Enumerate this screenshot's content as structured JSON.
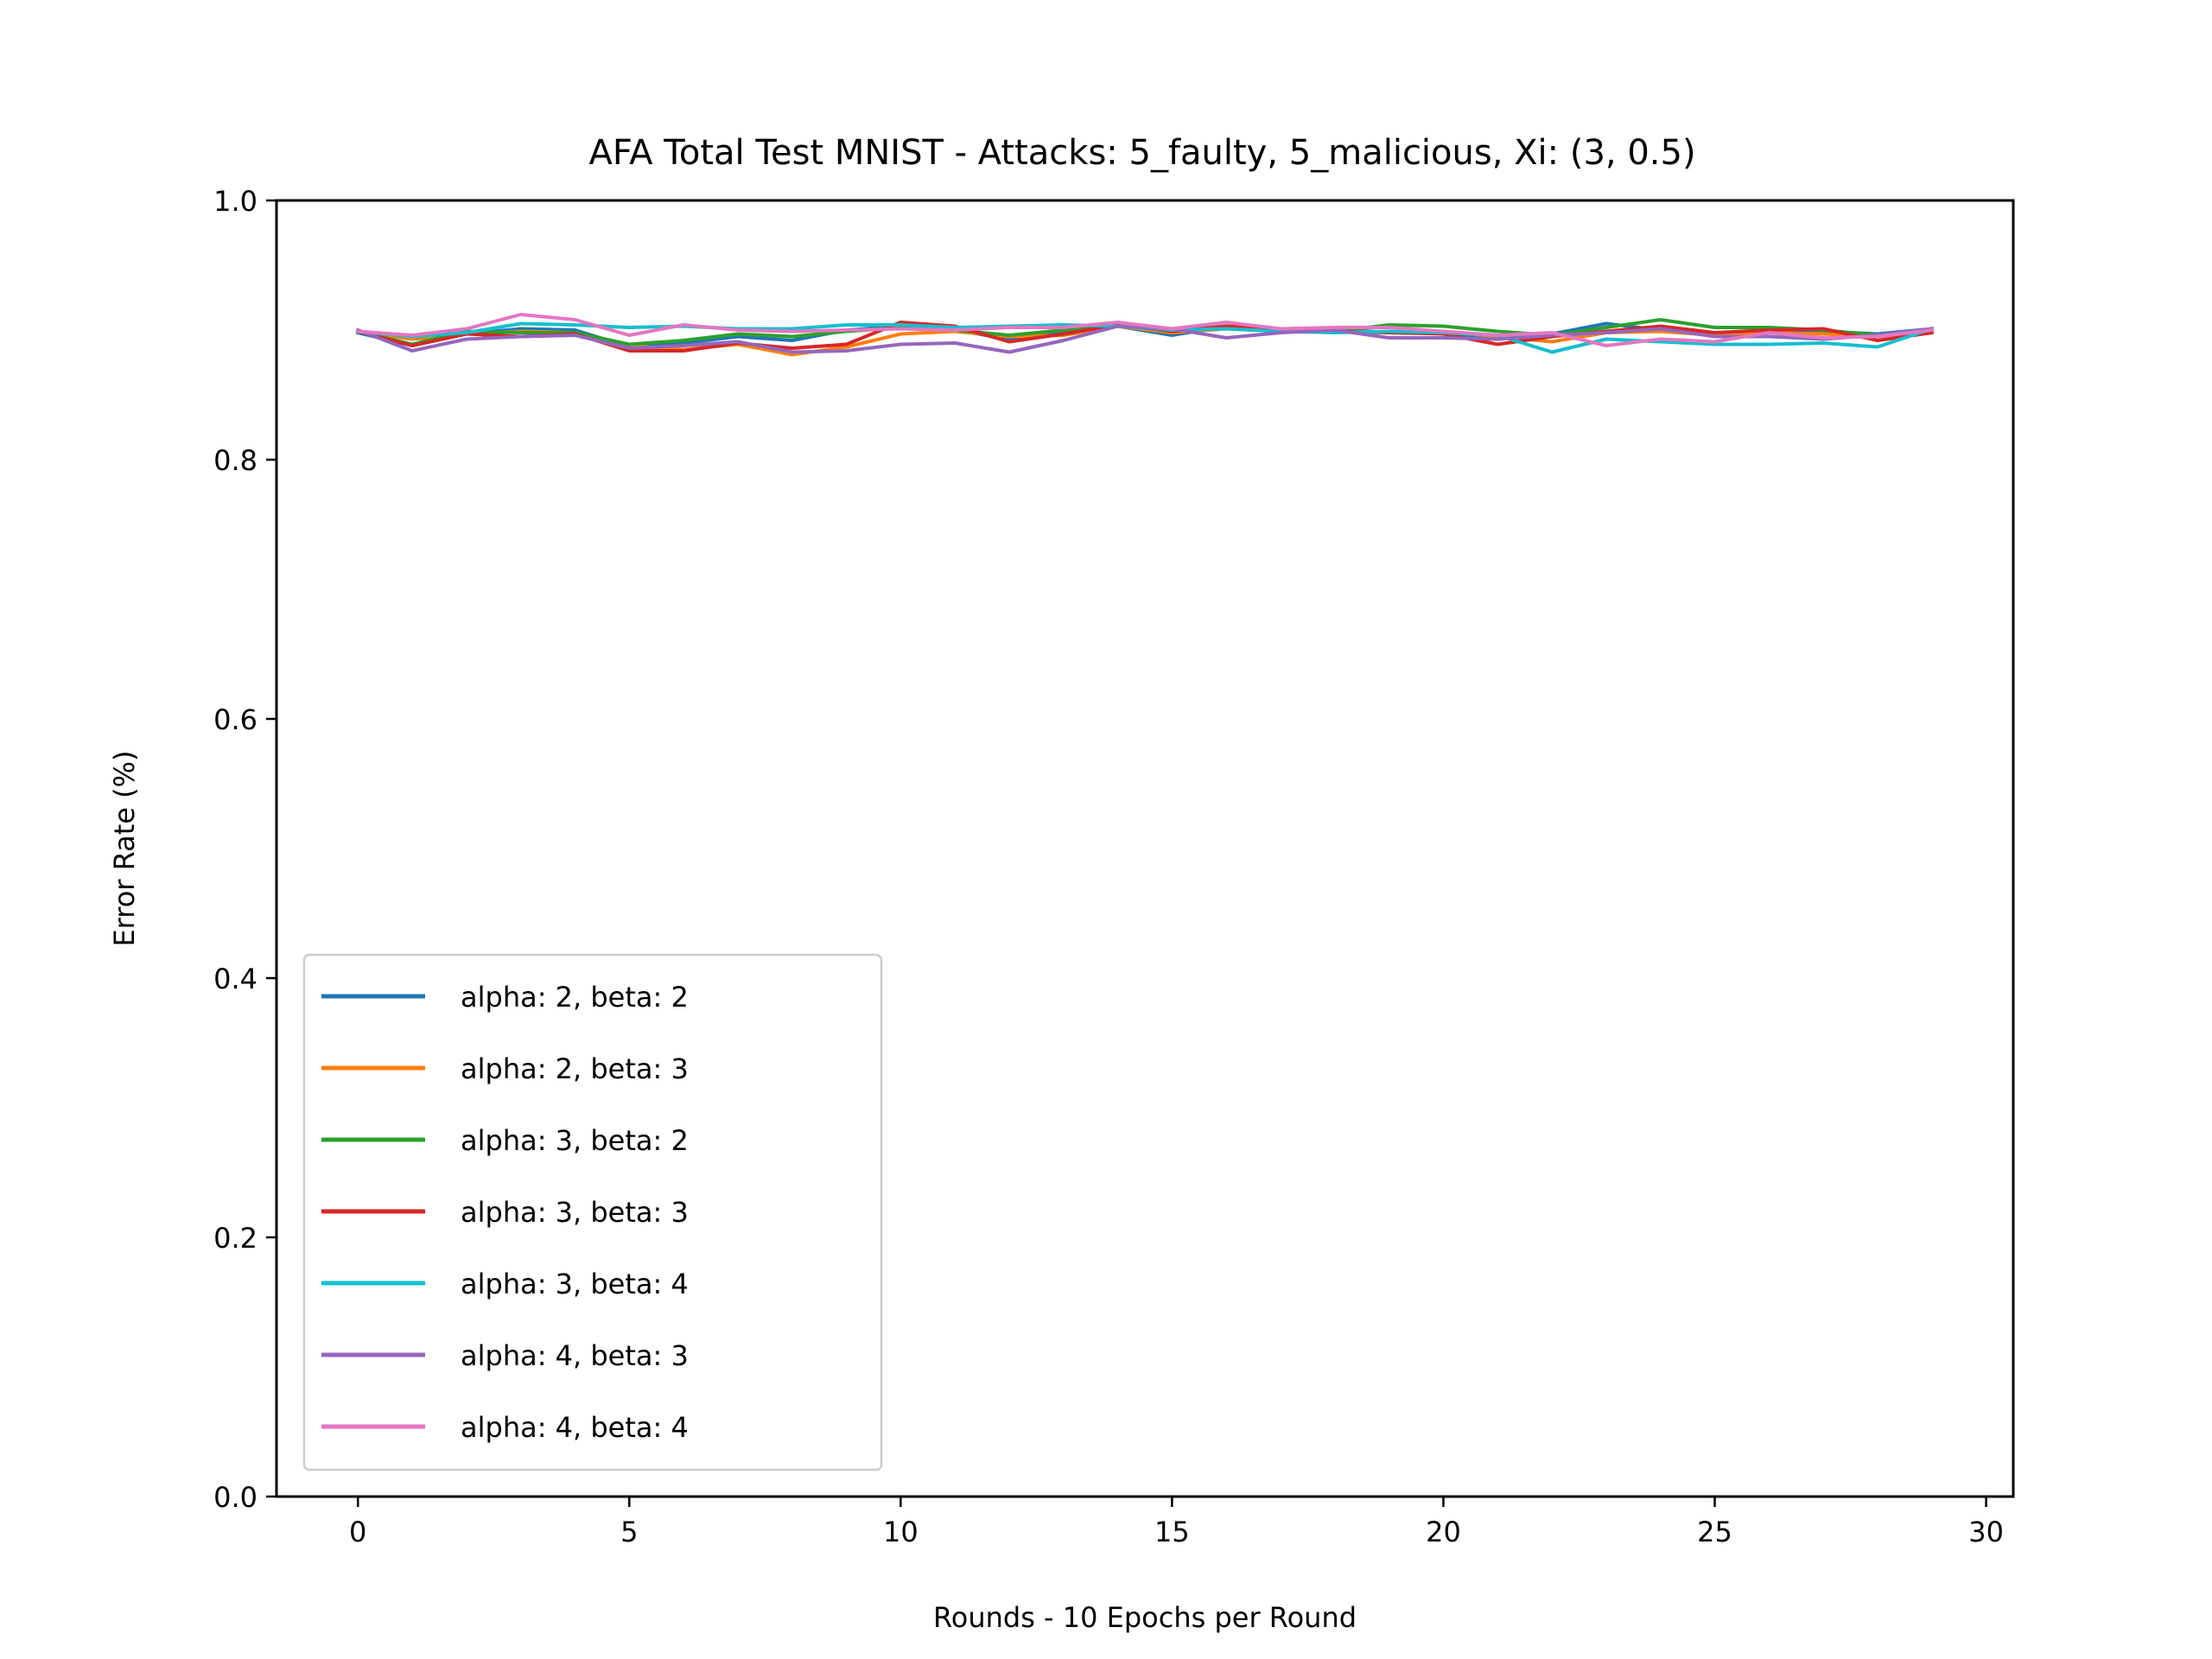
{
  "chart_data": {
    "type": "line",
    "title": "AFA Total Test MNIST - Attacks: 5_faulty, 5_malicious, Xi: (3, 0.5)",
    "xlabel": "Rounds - 10 Epochs per Round",
    "ylabel": "Error Rate (%)",
    "xlim": [
      -1.5,
      30.5
    ],
    "ylim": [
      0.0,
      1.0
    ],
    "xticks": [
      0,
      5,
      10,
      15,
      20,
      25,
      30
    ],
    "xtick_labels": [
      "0",
      "5",
      "10",
      "15",
      "20",
      "25",
      "30"
    ],
    "yticks": [
      0.0,
      0.2,
      0.4,
      0.6,
      0.8,
      1.0
    ],
    "ytick_labels": [
      "0.0",
      "0.2",
      "0.4",
      "0.6",
      "0.8",
      "1.0"
    ],
    "grid": false,
    "legend_position": "lower-left",
    "x": [
      0,
      1,
      2,
      3,
      4,
      5,
      6,
      7,
      8,
      9,
      10,
      11,
      12,
      13,
      14,
      15,
      16,
      17,
      18,
      19,
      20,
      21,
      22,
      23,
      24,
      25,
      26,
      27,
      28,
      29
    ],
    "series": [
      {
        "name": "alpha: 2, beta: 2",
        "color": "#1f77b4",
        "values": [
          0.898,
          0.888,
          0.897,
          0.901,
          0.9,
          0.887,
          0.89,
          0.895,
          0.892,
          0.9,
          0.903,
          0.9,
          0.893,
          0.898,
          0.903,
          0.896,
          0.903,
          0.899,
          0.901,
          0.898,
          0.898,
          0.893,
          0.897,
          0.905,
          0.9,
          0.897,
          0.898,
          0.899,
          0.897,
          0.901
        ]
      },
      {
        "name": "alpha: 2, beta: 3",
        "color": "#ff7f0e",
        "values": [
          0.899,
          0.893,
          0.897,
          0.899,
          0.898,
          0.888,
          0.885,
          0.889,
          0.881,
          0.887,
          0.897,
          0.899,
          0.895,
          0.896,
          0.903,
          0.898,
          0.901,
          0.899,
          0.9,
          0.898,
          0.899,
          0.895,
          0.891,
          0.898,
          0.899,
          0.896,
          0.898,
          0.897,
          0.895,
          0.9
        ]
      },
      {
        "name": "alpha: 3, beta: 2",
        "color": "#2ca02c",
        "values": [
          0.899,
          0.889,
          0.899,
          0.898,
          0.898,
          0.889,
          0.892,
          0.897,
          0.895,
          0.899,
          0.902,
          0.9,
          0.896,
          0.9,
          0.904,
          0.899,
          0.903,
          0.9,
          0.899,
          0.904,
          0.903,
          0.899,
          0.896,
          0.902,
          0.908,
          0.902,
          0.902,
          0.9,
          0.896,
          0.9
        ]
      },
      {
        "name": "alpha: 3, beta: 3",
        "color": "#d62728",
        "values": [
          0.899,
          0.888,
          0.897,
          0.895,
          0.897,
          0.884,
          0.884,
          0.89,
          0.886,
          0.889,
          0.906,
          0.903,
          0.891,
          0.897,
          0.904,
          0.899,
          0.903,
          0.901,
          0.899,
          0.898,
          0.897,
          0.889,
          0.895,
          0.899,
          0.903,
          0.898,
          0.9,
          0.901,
          0.892,
          0.898
        ]
      },
      {
        "name": "alpha: 3, beta: 4",
        "color": "#17becf",
        "values": [
          0.899,
          0.895,
          0.898,
          0.905,
          0.904,
          0.902,
          0.903,
          0.901,
          0.901,
          0.904,
          0.904,
          0.902,
          0.903,
          0.904,
          0.903,
          0.9,
          0.901,
          0.899,
          0.898,
          0.899,
          0.898,
          0.896,
          0.883,
          0.893,
          0.891,
          0.889,
          0.889,
          0.89,
          0.887,
          0.901
        ]
      },
      {
        "name": "alpha: 4, beta: 3",
        "color": "#9467bd",
        "values": [
          0.9,
          0.884,
          0.893,
          0.895,
          0.896,
          0.886,
          0.888,
          0.891,
          0.883,
          0.884,
          0.889,
          0.89,
          0.883,
          0.892,
          0.903,
          0.901,
          0.894,
          0.898,
          0.9,
          0.894,
          0.894,
          0.893,
          0.896,
          0.898,
          0.901,
          0.895,
          0.895,
          0.893,
          0.896,
          0.901
        ]
      },
      {
        "name": "alpha: 4, beta: 4",
        "color": "#e377c2",
        "values": [
          0.899,
          0.896,
          0.901,
          0.912,
          0.908,
          0.896,
          0.904,
          0.9,
          0.899,
          0.9,
          0.901,
          0.9,
          0.902,
          0.902,
          0.906,
          0.901,
          0.906,
          0.901,
          0.902,
          0.902,
          0.899,
          0.896,
          0.898,
          0.888,
          0.893,
          0.891,
          0.898,
          0.894,
          0.895,
          0.9
        ]
      }
    ]
  }
}
